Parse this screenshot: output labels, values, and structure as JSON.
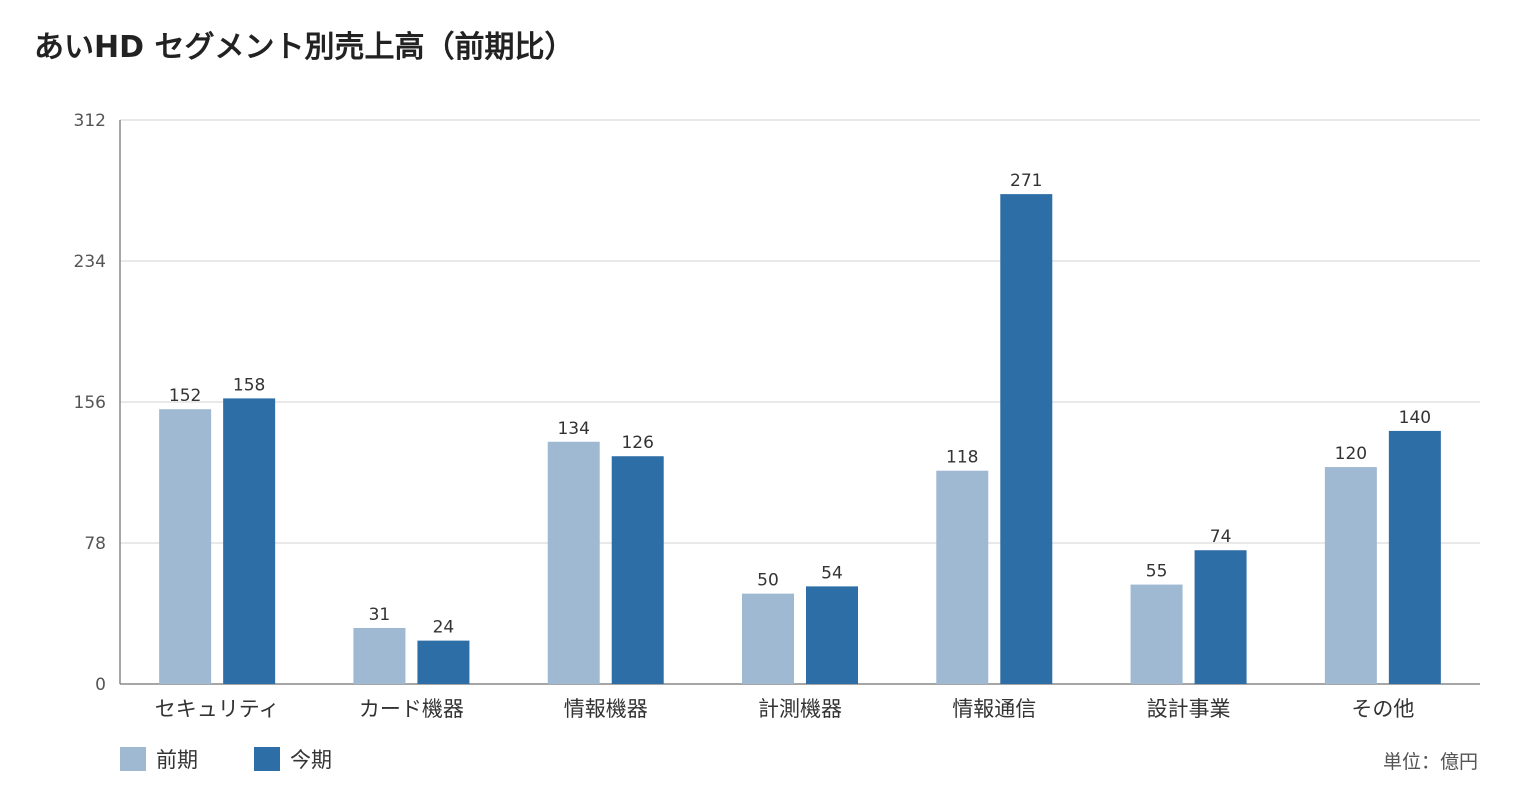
{
  "chart_data": {
    "type": "bar",
    "title": "あいHD セグメント別売上高（前期比）",
    "unit_note": "単位：億円",
    "categories": [
      "セキュリティ",
      "カード機器",
      "情報機器",
      "計測機器",
      "情報通信",
      "設計事業",
      "その他"
    ],
    "series": [
      {
        "name": "前期",
        "color": "#a0b9d3",
        "values": [
          152,
          31,
          134,
          50,
          118,
          55,
          120
        ]
      },
      {
        "name": "今期",
        "color": "#2e6ea6",
        "values": [
          158,
          24,
          126,
          54,
          271,
          74,
          140
        ]
      }
    ],
    "yticks": [
      "0",
      "78",
      "156",
      "234",
      "312"
    ],
    "ylim": [
      0,
      312
    ],
    "grid": true,
    "legend_position": "bottom-left"
  }
}
